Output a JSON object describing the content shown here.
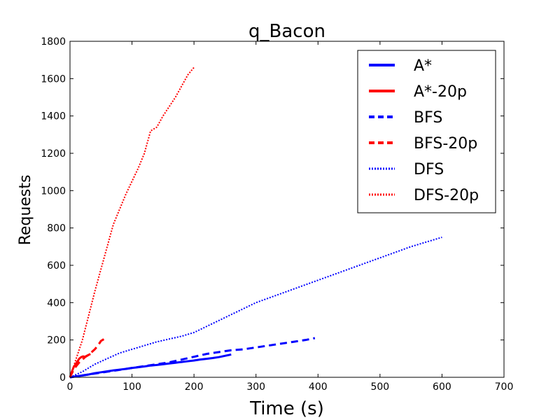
{
  "chart_data": {
    "type": "line",
    "title": "q_Bacon",
    "xlabel": "Time (s)",
    "ylabel": "Requests",
    "xlim": [
      0,
      700
    ],
    "ylim": [
      0,
      1800
    ],
    "xticks": [
      0,
      100,
      200,
      300,
      400,
      500,
      600,
      700
    ],
    "yticks": [
      0,
      200,
      400,
      600,
      800,
      1000,
      1200,
      1400,
      1600,
      1800
    ],
    "grid": false,
    "legend_position": "top-right",
    "series": [
      {
        "name": "A*",
        "color": "#0000ff",
        "style": "solid",
        "x": [
          0,
          10,
          20,
          30,
          40,
          50,
          60,
          70,
          80,
          90,
          100,
          110,
          120,
          130,
          140,
          150,
          160,
          170,
          180,
          190,
          200,
          210,
          220,
          230,
          240,
          250,
          260
        ],
        "y": [
          0,
          5,
          10,
          15,
          22,
          27,
          32,
          37,
          41,
          45,
          50,
          54,
          58,
          63,
          66,
          70,
          74,
          78,
          82,
          86,
          90,
          95,
          99,
          103,
          108,
          115,
          122
        ]
      },
      {
        "name": "A*-20p",
        "color": "#ff0000",
        "style": "solid",
        "x": [
          0,
          3,
          6,
          9,
          12,
          15,
          18,
          21,
          24,
          27,
          30,
          33
        ],
        "y": [
          0,
          30,
          55,
          70,
          85,
          100,
          108,
          112,
          110,
          115,
          120,
          125
        ]
      },
      {
        "name": "BFS",
        "color": "#0000ff",
        "style": "dashed",
        "x": [
          0,
          20,
          40,
          60,
          80,
          100,
          120,
          140,
          160,
          180,
          200,
          220,
          240,
          260,
          280,
          300,
          320,
          340,
          360,
          380,
          395
        ],
        "y": [
          0,
          10,
          20,
          30,
          40,
          50,
          60,
          70,
          80,
          95,
          110,
          125,
          135,
          145,
          150,
          160,
          170,
          180,
          190,
          200,
          210
        ]
      },
      {
        "name": "BFS-20p",
        "color": "#ff0000",
        "style": "dashed",
        "x": [
          0,
          5,
          10,
          15,
          20,
          25,
          30,
          35,
          40,
          45,
          50,
          55
        ],
        "y": [
          0,
          35,
          60,
          80,
          95,
          110,
          120,
          135,
          150,
          170,
          195,
          205
        ]
      },
      {
        "name": "DFS",
        "color": "#0000ff",
        "style": "dotted",
        "x": [
          0,
          20,
          40,
          60,
          80,
          100,
          120,
          140,
          160,
          180,
          200,
          250,
          300,
          350,
          400,
          450,
          500,
          550,
          600
        ],
        "y": [
          0,
          30,
          70,
          100,
          130,
          150,
          170,
          190,
          205,
          220,
          240,
          320,
          400,
          460,
          520,
          580,
          640,
          700,
          750
        ]
      },
      {
        "name": "DFS-20p",
        "color": "#ff0000",
        "style": "dotted",
        "x": [
          0,
          10,
          20,
          30,
          40,
          50,
          60,
          70,
          80,
          90,
          100,
          110,
          120,
          130,
          140,
          150,
          160,
          170,
          180,
          190,
          200
        ],
        "y": [
          0,
          100,
          200,
          330,
          460,
          580,
          700,
          820,
          900,
          980,
          1050,
          1120,
          1200,
          1320,
          1340,
          1400,
          1450,
          1500,
          1560,
          1620,
          1660
        ]
      }
    ]
  }
}
